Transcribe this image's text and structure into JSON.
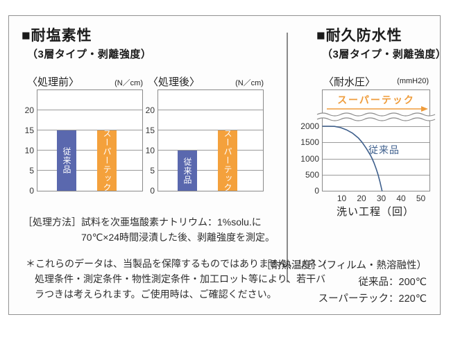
{
  "colors": {
    "bar_blue": "#5a68ae",
    "bar_orange": "#f4a13c",
    "line_blue": "#3e5f8c",
    "accent_orange": "#ef9c3b",
    "grid_grey": "#9a9a9a",
    "border_grey": "#8a8a8a"
  },
  "left": {
    "title": "■耐塩素性",
    "subtitle": "（3層タイプ・剥離強度）",
    "method": {
      "label": "［処理方法］",
      "line1": "試料を次亜塩酸素ナトリウム：1%solu.に",
      "line2": "70℃×24時間浸漬した後、剥離強度を測定。"
    },
    "note": {
      "line1": "＊これらのデータは、当製品を保障するものではありません。リネン",
      "line2": "処理条件・測定条件・物性測定条件・加工ロット等により、若干バ",
      "line3": "ラつきは考えられます。ご使用時は、ご確認ください。"
    }
  },
  "right": {
    "title": "■耐久防水性",
    "subtitle": "（3層タイプ・剥離強度）",
    "heat": {
      "line1": "［耐熱温度］（フィルム・熱溶融性）",
      "line2": "従来品：200℃",
      "line3": "スーパーテック：220℃"
    }
  },
  "chart_data": [
    {
      "type": "bar",
      "title": "〈処理前〉",
      "unit": "(N／cm)",
      "categories": [
        "従来品",
        "スーパーテック"
      ],
      "values": [
        15,
        15
      ],
      "colors": [
        "#5a68ae",
        "#f4a13c"
      ],
      "ylim": [
        0,
        25
      ],
      "yticks": [
        0,
        5,
        10,
        15,
        20
      ],
      "grid": true
    },
    {
      "type": "bar",
      "title": "〈処理後〉",
      "unit": "(N／cm)",
      "categories": [
        "従来品",
        "スーパーテック"
      ],
      "values": [
        10,
        15
      ],
      "colors": [
        "#5a68ae",
        "#f4a13c"
      ],
      "ylim": [
        0,
        25
      ],
      "yticks": [
        0,
        5,
        10,
        15,
        20
      ],
      "grid": true
    },
    {
      "type": "line",
      "title": "〈耐水圧〉",
      "unit": "(mmH20)",
      "xlabel": "洗い工程（回）",
      "xticks": [
        10,
        20,
        30,
        40,
        50
      ],
      "yticks": [
        0,
        500,
        1000,
        1500,
        2000
      ],
      "xlim": [
        0,
        54
      ],
      "ylim": [
        0,
        2000
      ],
      "axis_break_above_ymax": true,
      "grid": true,
      "series": [
        {
          "name": "スーパーテック",
          "color": "#ef9c3b",
          "off_scale_high": true
        },
        {
          "name": "従来品",
          "color": "#3e5f8c",
          "points": [
            [
              0,
              2000
            ],
            [
              3,
              2000
            ],
            [
              6,
              1995
            ],
            [
              9,
              1960
            ],
            [
              12,
              1890
            ],
            [
              15,
              1790
            ],
            [
              18,
              1640
            ],
            [
              20,
              1500
            ],
            [
              22,
              1320
            ],
            [
              24,
              1120
            ],
            [
              25,
              1000
            ],
            [
              26,
              860
            ],
            [
              27,
              690
            ],
            [
              28,
              500
            ],
            [
              29,
              270
            ],
            [
              30,
              0
            ]
          ]
        }
      ]
    }
  ]
}
